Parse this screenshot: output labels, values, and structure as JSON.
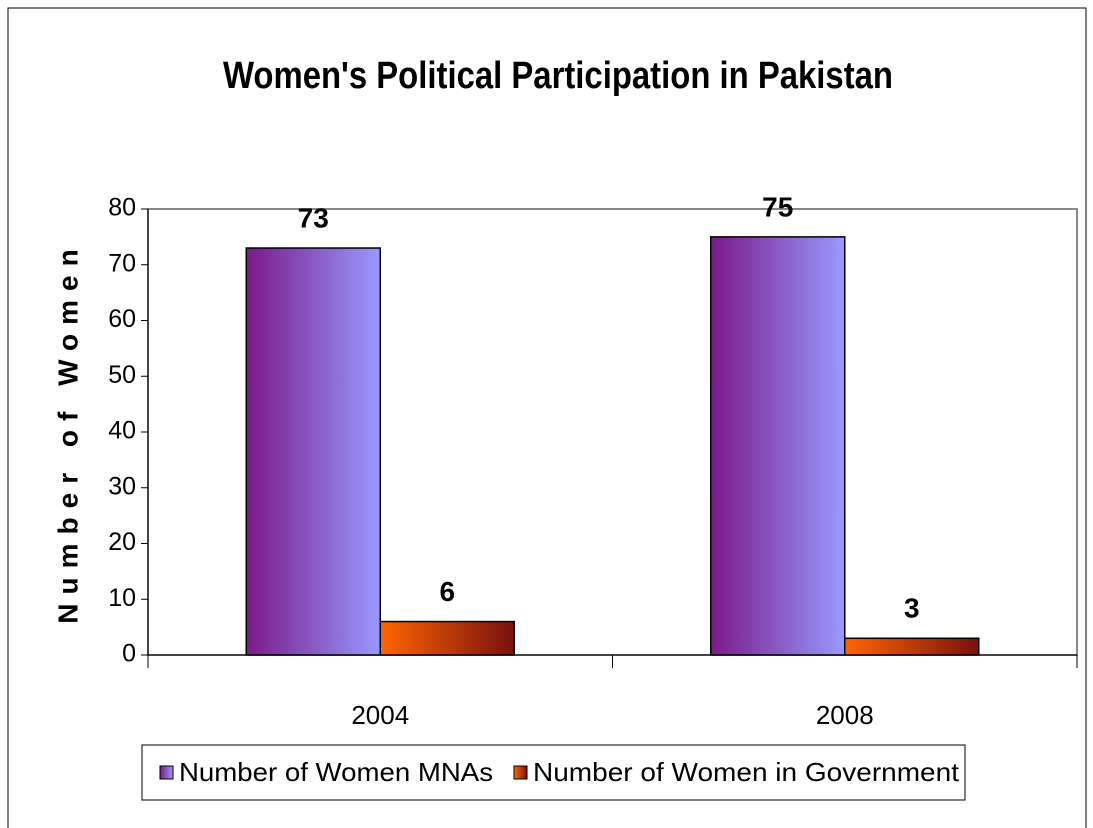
{
  "chart_data": {
    "type": "bar",
    "title": "Women's Political Participation in Pakistan",
    "y_label": "Number of Women",
    "categories": [
      "2004",
      "2008"
    ],
    "series": [
      {
        "name": "Number of Women MNAs",
        "colors": [
          "#7a1a8a",
          "#9999ff"
        ],
        "values": [
          73,
          75
        ]
      },
      {
        "name": "Number of Women in Government",
        "colors": [
          "#ff6600",
          "#7a1010"
        ],
        "values": [
          6,
          3
        ]
      }
    ],
    "ylim": [
      0,
      80
    ],
    "yticks": [
      0,
      10,
      20,
      30,
      40,
      50,
      60,
      70,
      80
    ],
    "grid": false,
    "legend": "bottom"
  }
}
